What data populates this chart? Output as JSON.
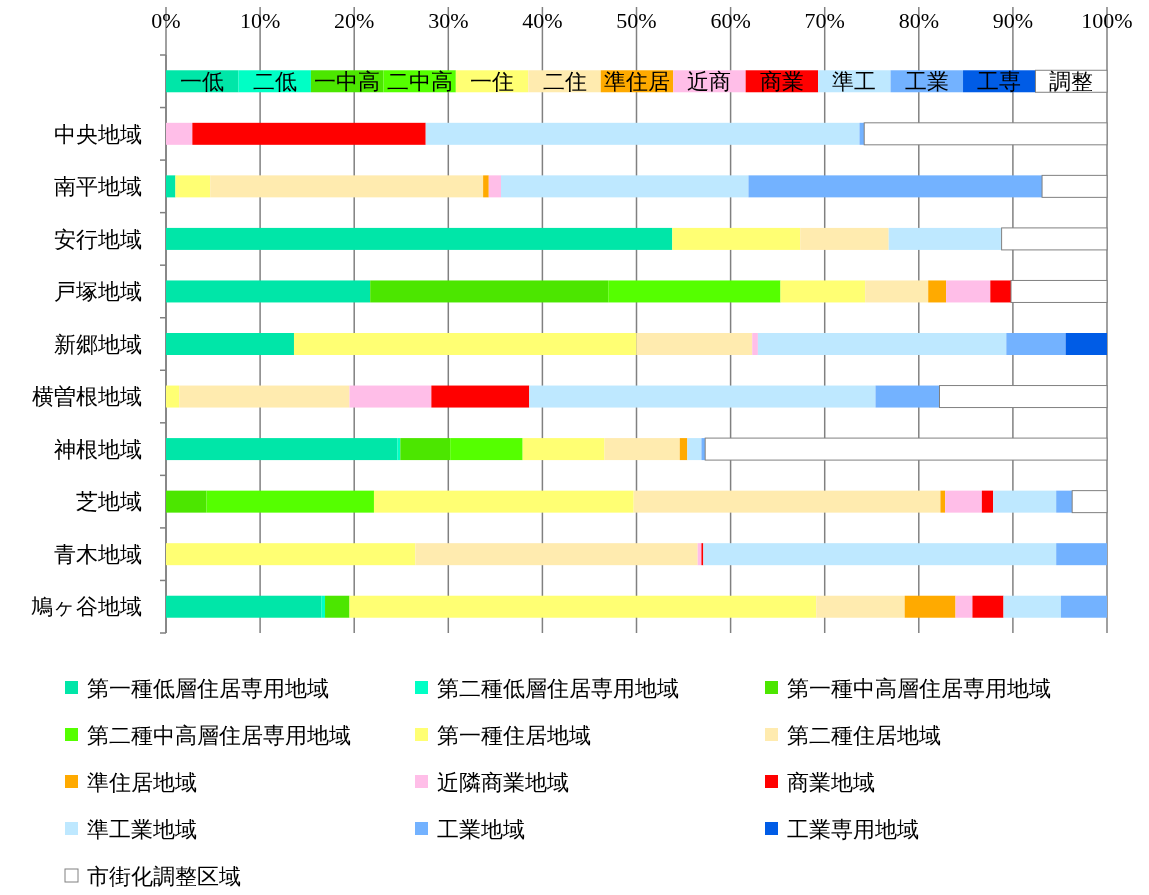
{
  "chart_data": {
    "type": "bar",
    "orientation": "horizontal",
    "stacked": true,
    "categories": [
      null,
      "中央地域",
      "南平地域",
      "安行地域",
      "戸塚地域",
      "新郷地域",
      "横曽根地域",
      "神根地域",
      "芝地域",
      "青木地域",
      "鳩ヶ谷地域"
    ],
    "xlim": [
      0,
      100
    ],
    "xticks": [
      {
        "value": 0,
        "label": "0%"
      },
      {
        "value": 10,
        "label": "10%"
      },
      {
        "value": 20,
        "label": "20%"
      },
      {
        "value": 30,
        "label": "30%"
      },
      {
        "value": 40,
        "label": "40%"
      },
      {
        "value": 50,
        "label": "50%"
      },
      {
        "value": 60,
        "label": "60%"
      },
      {
        "value": 70,
        "label": "70%"
      },
      {
        "value": 80,
        "label": "80%"
      },
      {
        "value": 90,
        "label": "90%"
      },
      {
        "value": 100,
        "label": "100%"
      }
    ],
    "grid": "x",
    "legend": "bottom",
    "series": [
      {
        "name": "第一種低層住居専用地域",
        "color": "#00e6a8",
        "values": [
          7.7,
          0,
          1.0,
          53.8,
          21.7,
          13.6,
          0,
          24.6,
          0,
          0,
          16.5
        ],
        "value_labels": [
          "一低",
          null,
          null,
          null,
          null,
          null,
          null,
          null,
          null,
          null,
          null
        ]
      },
      {
        "name": "第二種低層住居専用地域",
        "color": "#00ffc5",
        "values": [
          7.7,
          0,
          0,
          0,
          0,
          0,
          0,
          0.3,
          0,
          0,
          0.4
        ],
        "value_labels": [
          "二低",
          null,
          null,
          null,
          null,
          null,
          null,
          null,
          null,
          null,
          null
        ]
      },
      {
        "name": "第一種中高層住居専用地域",
        "color": "#4ce600",
        "values": [
          7.7,
          0,
          0,
          0,
          25.3,
          0,
          0,
          5.3,
          4.3,
          0,
          2.6
        ],
        "value_labels": [
          "一中高",
          null,
          null,
          null,
          null,
          null,
          null,
          null,
          null,
          null,
          null
        ]
      },
      {
        "name": "第二種中高層住居専用地域",
        "color": "#55ff00",
        "values": [
          7.7,
          0,
          0,
          0,
          18.3,
          0,
          0,
          7.7,
          17.8,
          0,
          0
        ],
        "value_labels": [
          "二中高",
          null,
          null,
          null,
          null,
          null,
          null,
          null,
          null,
          null,
          null
        ]
      },
      {
        "name": "第一種住居地域",
        "color": "#ffff73",
        "values": [
          7.7,
          0,
          3.7,
          13.6,
          9.0,
          36.4,
          1.4,
          8.7,
          27.6,
          26.5,
          49.6
        ],
        "value_labels": [
          "一住",
          null,
          null,
          null,
          null,
          null,
          null,
          null,
          null,
          null,
          null
        ]
      },
      {
        "name": "第二種住居地域",
        "color": "#ffebaf",
        "values": [
          7.7,
          0,
          29.0,
          9.4,
          6.7,
          12.3,
          18.1,
          8.0,
          32.6,
          30.0,
          9.4
        ],
        "value_labels": [
          "二住",
          null,
          null,
          null,
          null,
          null,
          null,
          null,
          null,
          null,
          null
        ]
      },
      {
        "name": "準住居地域",
        "color": "#ffaa00",
        "values": [
          7.7,
          0,
          0.6,
          0,
          1.9,
          0,
          0,
          0.8,
          0.5,
          0,
          5.4
        ],
        "value_labels": [
          "準住居",
          null,
          null,
          null,
          null,
          null,
          null,
          null,
          null,
          null,
          null
        ]
      },
      {
        "name": "近隣商業地域",
        "color": "#ffbee8",
        "values": [
          7.7,
          2.8,
          1.3,
          0,
          4.7,
          0.6,
          8.7,
          0,
          3.9,
          0.4,
          1.8
        ],
        "value_labels": [
          "近商",
          null,
          null,
          null,
          null,
          null,
          null,
          null,
          null,
          null,
          null
        ]
      },
      {
        "name": "商業地域",
        "color": "#ff0000",
        "values": [
          7.7,
          24.8,
          0,
          0,
          2.2,
          0,
          10.4,
          0,
          1.2,
          0.2,
          3.3
        ],
        "value_labels": [
          "商業",
          null,
          null,
          null,
          null,
          null,
          null,
          null,
          null,
          null,
          null
        ]
      },
      {
        "name": "準工業地域",
        "color": "#bee8ff",
        "values": [
          7.7,
          46.1,
          26.3,
          12.0,
          0,
          26.4,
          36.8,
          1.5,
          6.7,
          37.5,
          6.1
        ],
        "value_labels": [
          "準工",
          null,
          null,
          null,
          null,
          null,
          null,
          null,
          null,
          null,
          null
        ]
      },
      {
        "name": "工業地域",
        "color": "#73b2ff",
        "values": [
          7.7,
          0.5,
          31.2,
          0,
          0,
          6.3,
          6.8,
          0.4,
          1.7,
          5.4,
          4.9
        ],
        "value_labels": [
          "工業",
          null,
          null,
          null,
          null,
          null,
          null,
          null,
          null,
          null,
          null
        ]
      },
      {
        "name": "工業専用地域",
        "color": "#005ce6",
        "values": [
          7.7,
          0,
          0,
          0,
          0,
          4.4,
          0,
          0,
          0,
          0,
          0
        ],
        "value_labels": [
          "工専",
          null,
          null,
          null,
          null,
          null,
          null,
          null,
          null,
          null,
          null
        ]
      },
      {
        "name": "市街化調整区域",
        "color": "#ffffff",
        "values": [
          7.6,
          25.8,
          6.9,
          11.2,
          10.2,
          0,
          17.8,
          42.7,
          3.7,
          0,
          0
        ],
        "value_labels": [
          "調整",
          null,
          null,
          null,
          null,
          null,
          null,
          null,
          null,
          null,
          null
        ]
      }
    ]
  }
}
